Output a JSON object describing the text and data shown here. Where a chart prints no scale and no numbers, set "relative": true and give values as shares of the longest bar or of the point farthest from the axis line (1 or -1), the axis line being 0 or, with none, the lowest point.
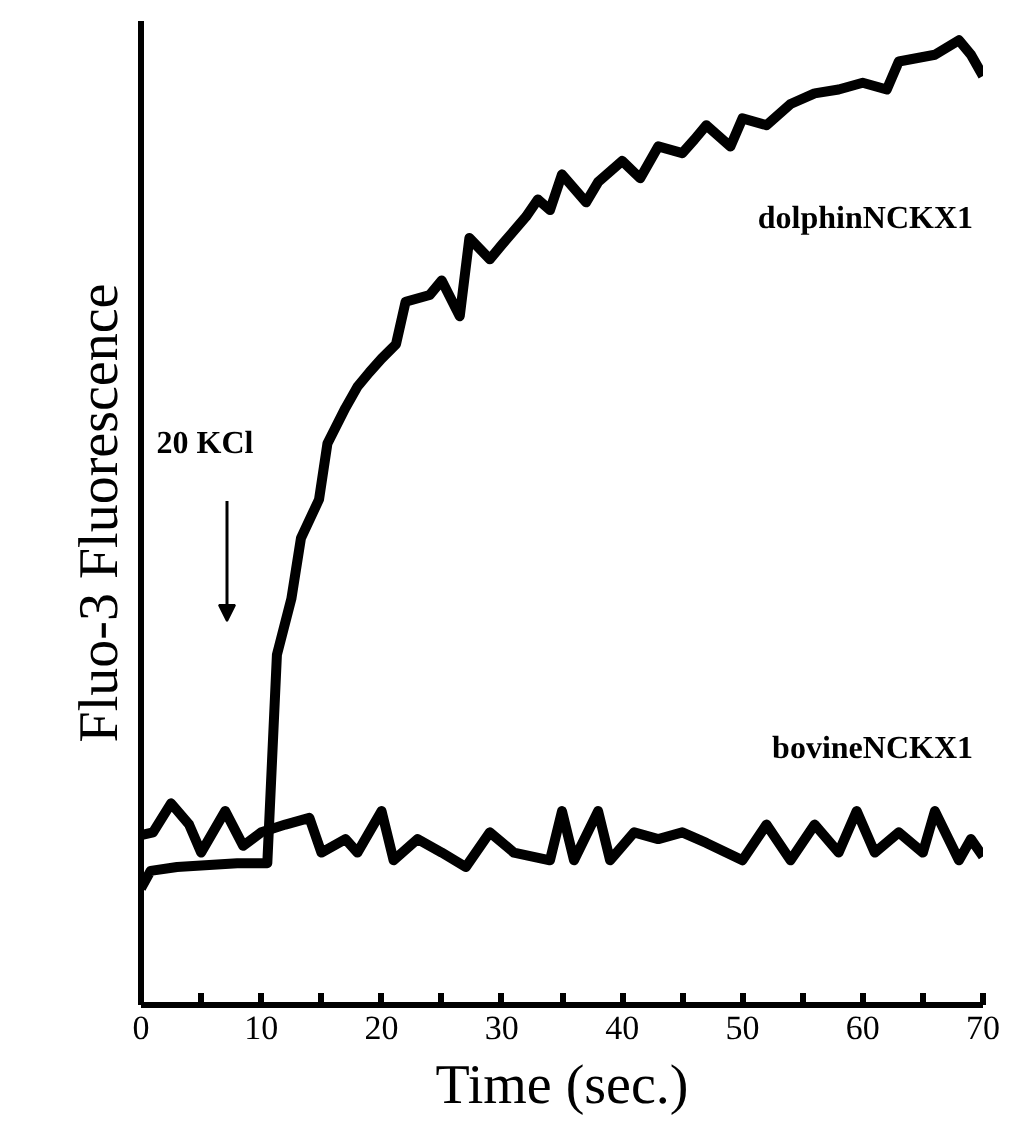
{
  "chart_data": {
    "type": "line",
    "relative": true,
    "xlabel": "Time (sec.)",
    "ylabel": "Fluo-3 Fluorescence",
    "xlim": [
      0,
      70
    ],
    "xticks": [
      0,
      {
        "value": 5,
        "label": null
      },
      10,
      {
        "value": 15,
        "label": null
      },
      20,
      {
        "value": 25,
        "label": null
      },
      30,
      {
        "value": 35,
        "label": null
      },
      40,
      {
        "value": 45,
        "label": null
      },
      50,
      {
        "value": 55,
        "label": null
      },
      60,
      {
        "value": 65,
        "label": null
      },
      70
    ],
    "annotations": [
      "20 KCl"
    ],
    "series": [
      {
        "name": "dolphinNCKX1",
        "color": "#000000",
        "x": [
          0,
          0.8,
          3,
          8,
          10.5,
          11.3,
          12.5,
          13.3,
          14.8,
          15.5,
          17,
          18,
          19,
          20,
          21.2,
          22,
          24,
          25,
          26.5,
          27.3,
          29,
          30,
          32,
          33,
          34,
          35,
          37,
          38,
          40,
          41.5,
          43,
          45,
          46,
          47,
          49,
          50,
          52,
          54,
          56,
          58,
          60,
          62,
          63,
          66,
          68,
          69,
          70
        ],
        "values": [
          0.121,
          0.139,
          0.143,
          0.147,
          0.147,
          0.363,
          0.421,
          0.484,
          0.524,
          0.582,
          0.619,
          0.641,
          0.656,
          0.67,
          0.685,
          0.729,
          0.736,
          0.751,
          0.714,
          0.795,
          0.773,
          0.788,
          0.817,
          0.835,
          0.824,
          0.861,
          0.832,
          0.853,
          0.875,
          0.857,
          0.89,
          0.883,
          0.897,
          0.912,
          0.89,
          0.919,
          0.912,
          0.934,
          0.945,
          0.949,
          0.956,
          0.949,
          0.978,
          0.985,
          1.0,
          0.985,
          0.963
        ]
      },
      {
        "name": "bovineNCKX1",
        "color": "#000000",
        "x": [
          0,
          1,
          2.5,
          4,
          5,
          7,
          8.5,
          10,
          12,
          14,
          15,
          17,
          18,
          20,
          21,
          23,
          25,
          27,
          29,
          31,
          34,
          35,
          36,
          38,
          39,
          41,
          43,
          45,
          47,
          50,
          52,
          54,
          56,
          58,
          59.5,
          61,
          63,
          65,
          66,
          68,
          69,
          70
        ],
        "values": [
          0.176,
          0.179,
          0.209,
          0.187,
          0.158,
          0.201,
          0.165,
          0.179,
          0.187,
          0.194,
          0.158,
          0.172,
          0.158,
          0.201,
          0.15,
          0.172,
          0.158,
          0.143,
          0.179,
          0.158,
          0.15,
          0.201,
          0.15,
          0.201,
          0.15,
          0.179,
          0.172,
          0.179,
          0.168,
          0.15,
          0.187,
          0.15,
          0.187,
          0.158,
          0.201,
          0.158,
          0.179,
          0.158,
          0.201,
          0.15,
          0.172,
          0.154
        ]
      }
    ]
  }
}
